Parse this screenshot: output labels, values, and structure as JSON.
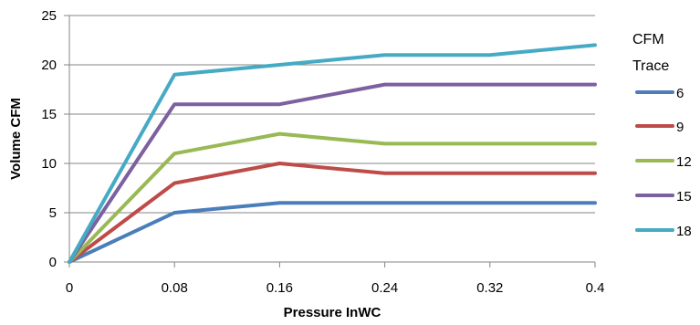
{
  "chart_data": {
    "type": "line",
    "title": "",
    "xlabel": "Pressure InWC",
    "ylabel": "Volume CFM",
    "x": [
      0,
      0.08,
      0.16,
      0.24,
      0.32,
      0.4
    ],
    "x_tick_labels": [
      "0",
      "0.08",
      "0.16",
      "0.24",
      "0.32",
      "0.4"
    ],
    "xlim": [
      0,
      0.4
    ],
    "ylim": [
      0,
      25
    ],
    "y_ticks": [
      0,
      5,
      10,
      15,
      20,
      25
    ],
    "grid": "horizontal",
    "legend": {
      "title_line1": "CFM",
      "title_line2": "Trace",
      "placement": "right"
    },
    "series": [
      {
        "name": "6",
        "color": "#4a7ebb",
        "values": [
          0,
          5,
          6,
          6,
          6,
          6
        ]
      },
      {
        "name": "9",
        "color": "#be4b48",
        "values": [
          0,
          8,
          10,
          9,
          9,
          9
        ]
      },
      {
        "name": "12",
        "color": "#98b954",
        "values": [
          0,
          11,
          13,
          12,
          12,
          12
        ]
      },
      {
        "name": "15",
        "color": "#7d60a0",
        "values": [
          0,
          16,
          16,
          18,
          18,
          18
        ]
      },
      {
        "name": "18",
        "color": "#46aac5",
        "values": [
          0,
          19,
          20,
          21,
          21,
          22
        ]
      }
    ]
  }
}
